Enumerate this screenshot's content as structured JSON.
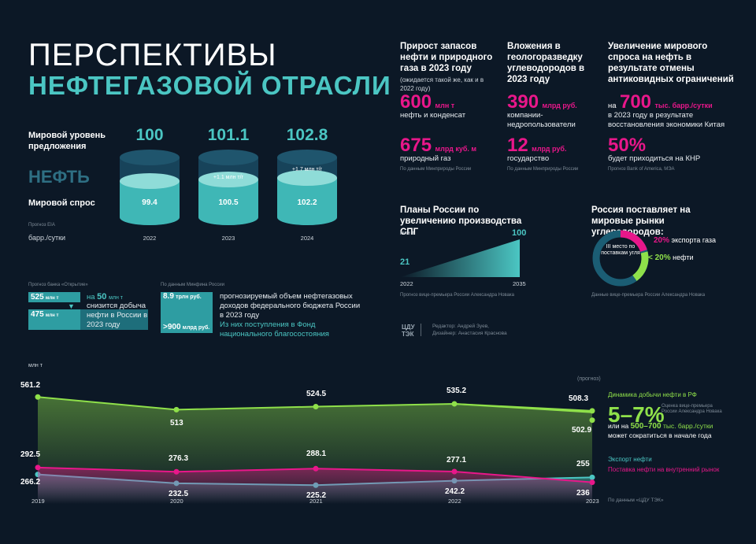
{
  "title": {
    "line1": "ПЕРСПЕКТИВЫ",
    "line2": "НЕФТЕГАЗОВОЙ ОТРАСЛИ"
  },
  "supply": {
    "supply_label": "Мировой уровень предложения",
    "oil_label": "НЕФТЬ",
    "demand_label": "Мировой спрос",
    "source": "Прогноз EIA",
    "unit": "барр./сутки",
    "columns": [
      {
        "year": "2022",
        "supply": "100",
        "demand": "99.4",
        "delta": ""
      },
      {
        "year": "2023",
        "supply": "101.1",
        "demand": "100.5",
        "delta": "+1.1 млн т/г"
      },
      {
        "year": "2024",
        "supply": "102.8",
        "demand": "102.2",
        "delta": "+1.7 млн т/г"
      }
    ]
  },
  "reserves": {
    "title": "Прирост запасов нефти и природного газа в 2023 году",
    "note": "(ожидается такой же, как и в 2022 году)",
    "v1": "600",
    "u1": "млн т",
    "d1": "нефть и конденсат",
    "v2": "675",
    "u2": "млрд куб. м",
    "d2": "природный газ",
    "source": "По данным Минприроды России"
  },
  "investments": {
    "title": "Вложения в геологоразведку углеводородов в 2023 году",
    "v1": "390",
    "u1": "млрд руб.",
    "d1": "компании-недропользователи",
    "v2": "12",
    "u2": "млрд руб.",
    "d2": "государство",
    "source": "По данным Минприроды России"
  },
  "demand_growth": {
    "title": "Увеличение мирового спроса на нефть в результате отмены антиковидных ограничений",
    "pre": "на",
    "v1": "700",
    "u1": "тыс. барр./сутки",
    "d1": "в 2023 году в результате восстановления экономики Китая",
    "v2": "50%",
    "d2": "будет приходиться на КНР",
    "source": "Прогноз Bank of America, МЭА"
  },
  "lng": {
    "title": "Планы России по увеличению производства СПГ",
    "unit": "млн т",
    "start_value": "21",
    "end_value": "100",
    "start_year": "2022",
    "end_year": "2035",
    "source": "Прогноз вице-премьера России Александра Новака"
  },
  "exports": {
    "title": "Россия поставляет на мировые рынки углеводородов:",
    "center": "III место по поставкам угля",
    "gas_share": "20%",
    "gas_text": "экспорта газа",
    "oil_share": "< 20%",
    "oil_text": "нефти",
    "gas_fraction": 0.2,
    "oil_fraction": 0.19,
    "source": "Данные вице-премьера России Александра Новака"
  },
  "production_drop": {
    "source": "Прогноз банка «Открытие»",
    "from": "525",
    "from_unit": "млн т",
    "to": "475",
    "to_unit": "млн т",
    "pre": "на",
    "value": "50",
    "unit": "млн т",
    "text": "снизится добыча нефти в России в 2023 году"
  },
  "budget": {
    "source": "По данным Минфина России",
    "v1": "8.9",
    "u1": "трлн руб.",
    "text1": "прогнозируемый объем нефтегазовых доходов федерального бюджета России в 2023 году",
    "v2": ">900",
    "u2": "млрд руб.",
    "text2": "Из них поступления в Фонд национального благосостояния"
  },
  "credits": {
    "logo": "ЦДУ ТЭК",
    "editor": "Редактор: Андрей Зуев,",
    "designer": "Дизайнер: Анастасия Краснова"
  },
  "chart_data": {
    "type": "line",
    "ylabel": "млн т",
    "x": [
      "2019",
      "2020",
      "2021",
      "2022",
      "2023"
    ],
    "series": [
      {
        "name": "Динамика добычи нефти в РФ",
        "values": [
          561.2,
          513,
          524.5,
          535.2,
          508.3
        ],
        "alt_2023": 502.9,
        "color": "#8fe04a"
      },
      {
        "name": "Экспорт нефти",
        "values": [
          266.2,
          232.5,
          225.2,
          242.2,
          255
        ],
        "color": "#4bc6c3"
      },
      {
        "name": "Поставка нефти на внутренний рынок",
        "values": [
          292.5,
          276.3,
          288.1,
          277.1,
          236
        ],
        "color": "#e8178a"
      }
    ],
    "forecast_label": "(прогноз)",
    "source": "По данным «ЦДУ ТЭК»",
    "annotation": {
      "value": "5–7%",
      "source": "Оценка вице-премьера России Александра Новака",
      "pre": "или на",
      "range": "500–700",
      "unit": "тыс. барр./сутки",
      "text": "может сократиться в начале года"
    }
  }
}
